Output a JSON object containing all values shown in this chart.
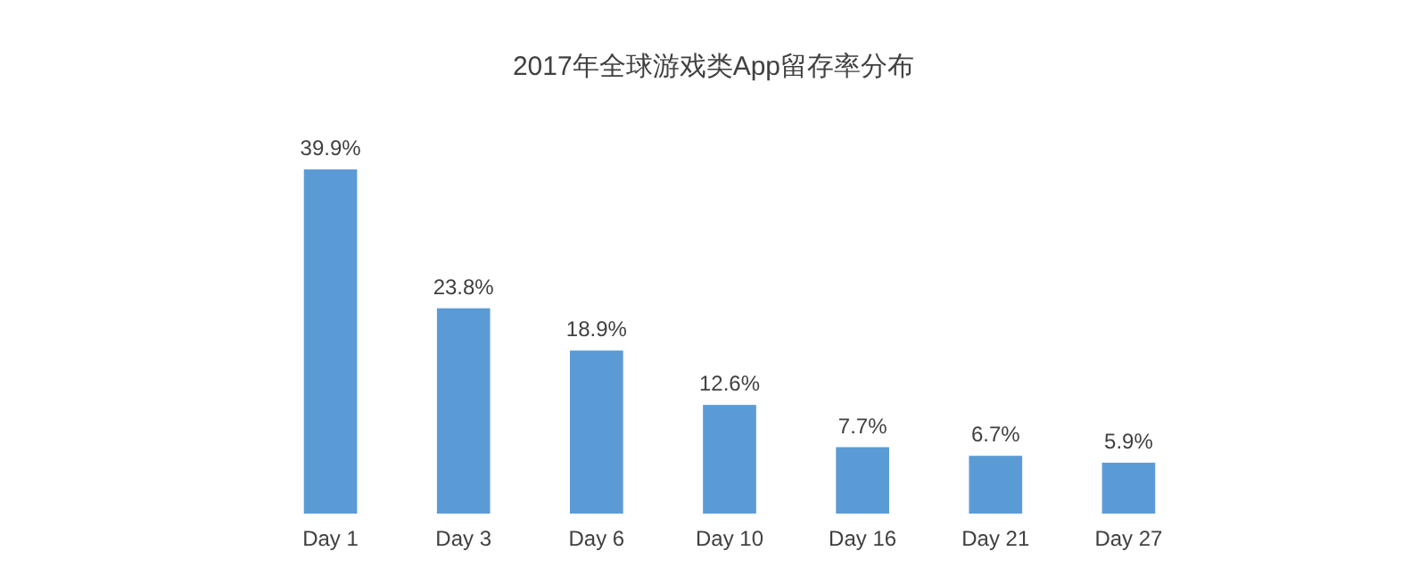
{
  "chart_data": {
    "type": "bar",
    "title": "2017年全球游戏类App留存率分布",
    "categories": [
      "Day 1",
      "Day 3",
      "Day 6",
      "Day 10",
      "Day 16",
      "Day 21",
      "Day 27"
    ],
    "values": [
      39.9,
      23.8,
      18.9,
      12.6,
      7.7,
      6.7,
      5.9
    ],
    "value_labels": [
      "39.9%",
      "23.8%",
      "18.9%",
      "12.6%",
      "7.7%",
      "6.7%",
      "5.9%"
    ],
    "color": "#5b9bd5"
  }
}
